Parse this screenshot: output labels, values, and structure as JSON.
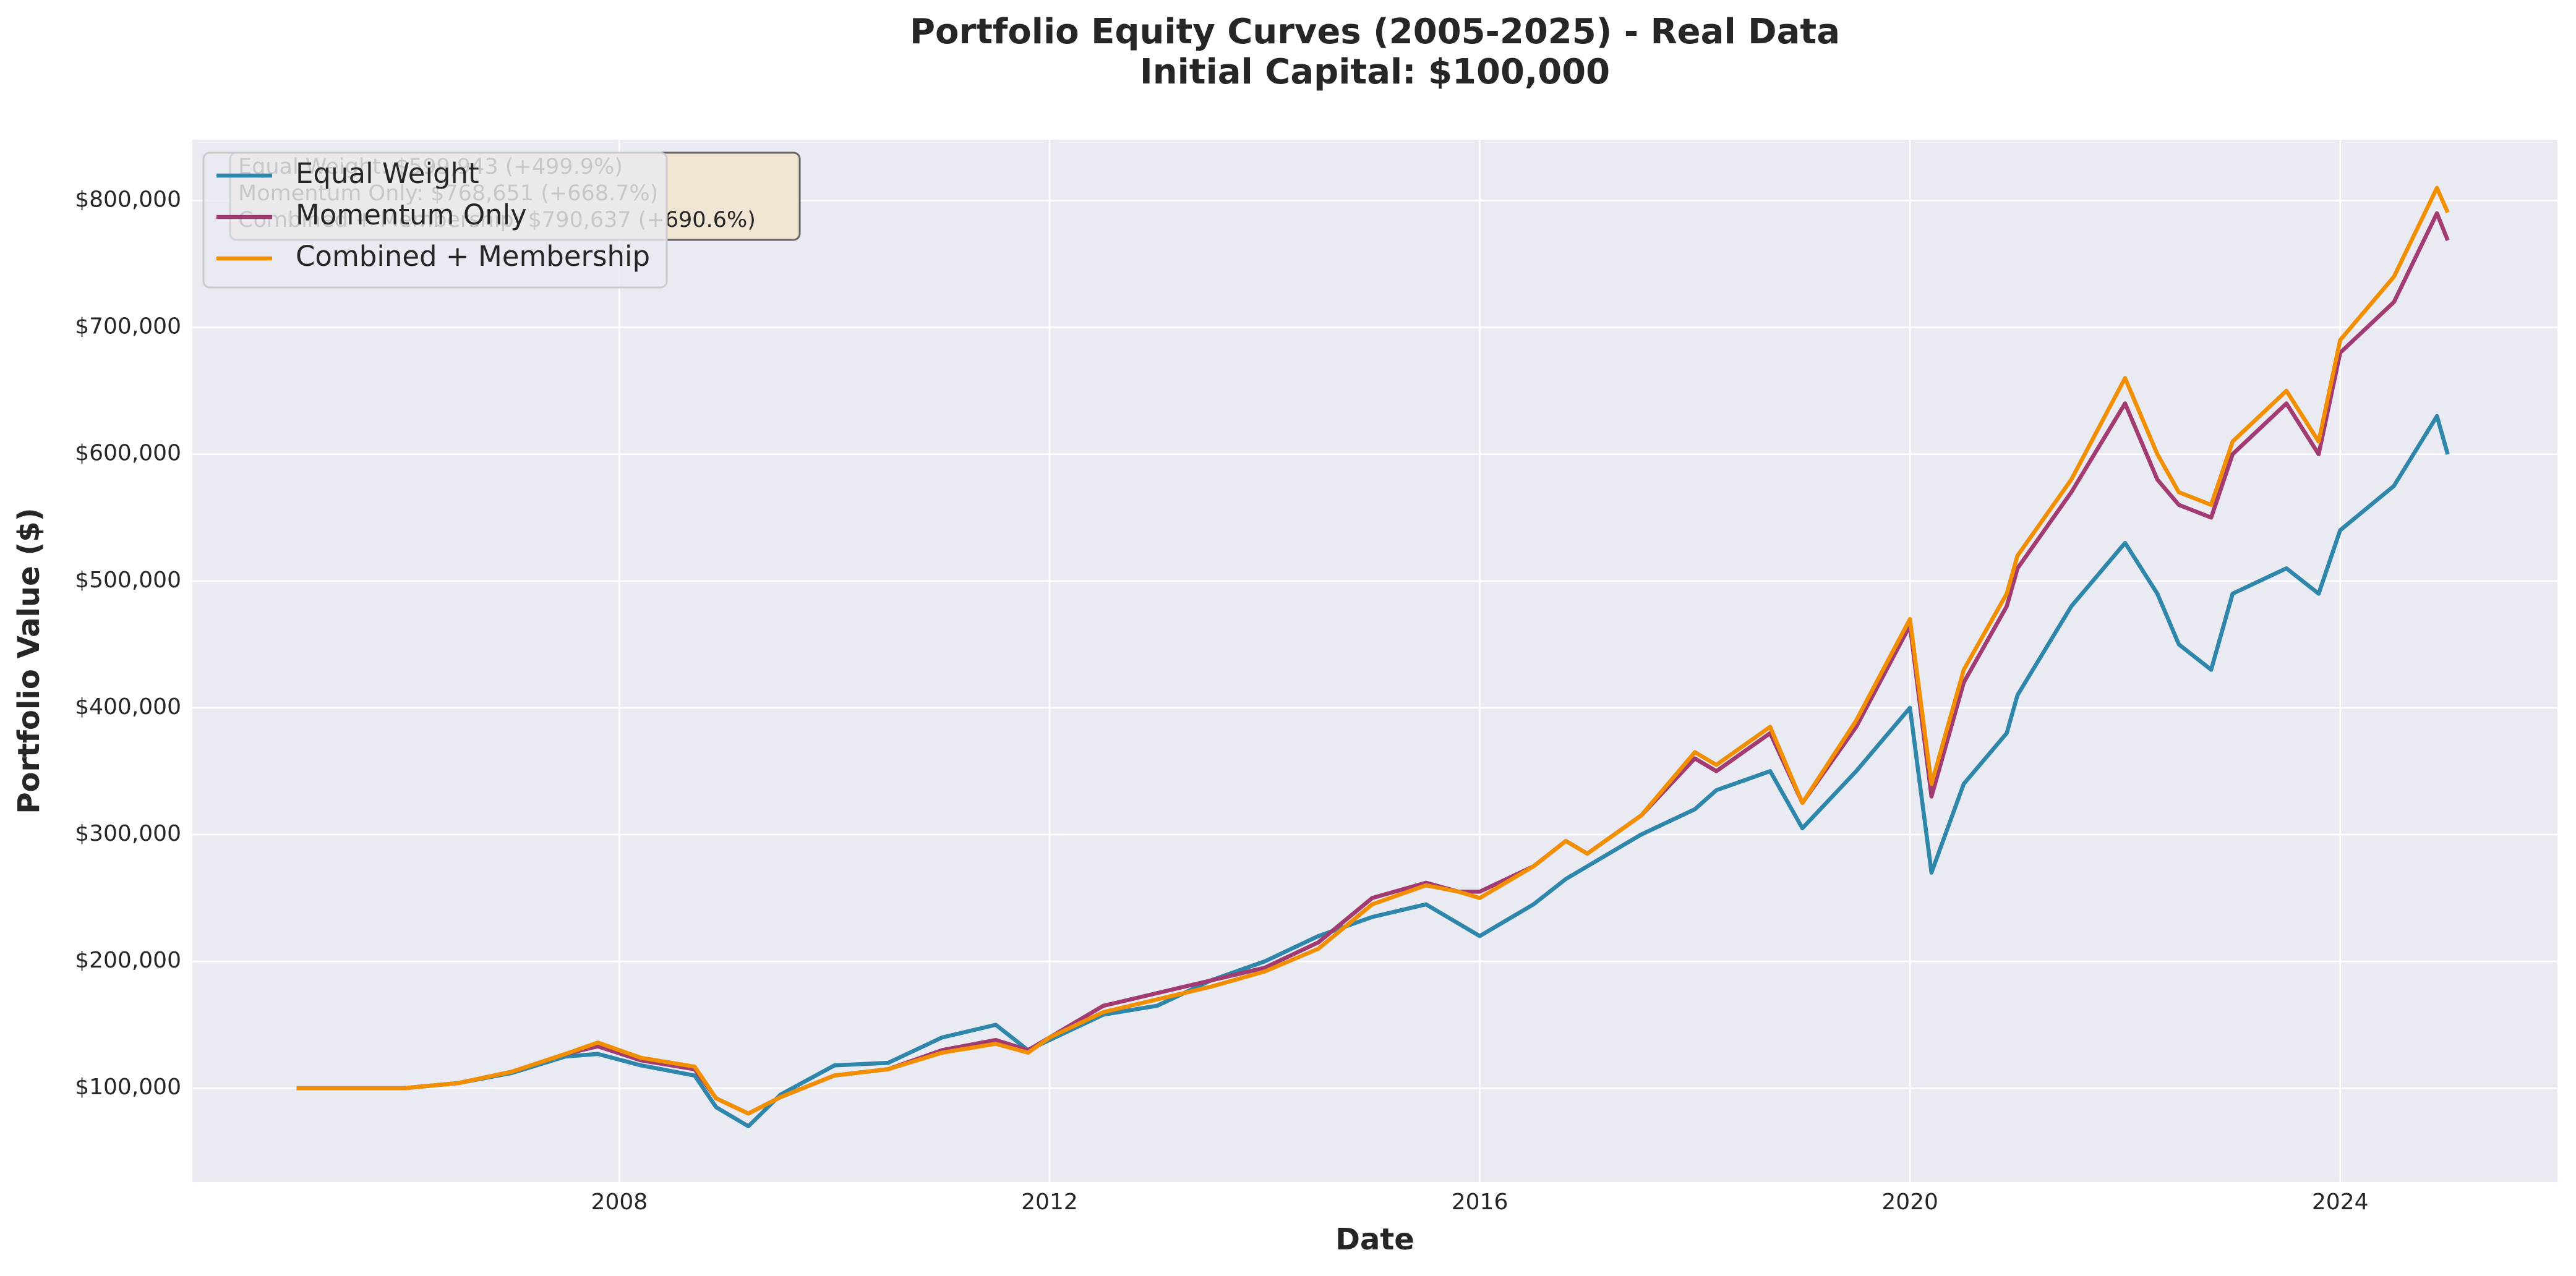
{
  "chart_data": {
    "type": "line",
    "title": "Portfolio Equity Curves (2005-2025) - Real Data",
    "subtitle": "Initial Capital: $100,000",
    "x_label": "Date",
    "y_label": "Portfolio Value ($)",
    "annotation": [
      "Equal Weight: $599,943 (+499.9%)",
      "Momentum Only: $768,651 (+668.7%)",
      "Combined + Membership: $790,637 (+690.6%)"
    ],
    "x": [
      2005.0,
      2006.0,
      2006.5,
      2007.0,
      2007.5,
      2007.8,
      2008.2,
      2008.7,
      2008.9,
      2009.2,
      2009.5,
      2010.0,
      2010.5,
      2011.0,
      2011.5,
      2011.8,
      2012.0,
      2012.5,
      2013.0,
      2013.5,
      2014.0,
      2014.5,
      2015.0,
      2015.5,
      2015.8,
      2016.0,
      2016.5,
      2016.8,
      2017.0,
      2017.5,
      2018.0,
      2018.2,
      2018.7,
      2019.0,
      2019.5,
      2020.0,
      2020.2,
      2020.5,
      2020.9,
      2021.0,
      2021.5,
      2022.0,
      2022.3,
      2022.5,
      2022.8,
      2023.0,
      2023.5,
      2023.8,
      2024.0,
      2024.5,
      2024.9,
      2025.0
    ],
    "series": [
      {
        "name": "Equal Weight",
        "color": "#2e86ab",
        "values": [
          100000,
          100000,
          104000,
          112000,
          125000,
          127000,
          118000,
          110000,
          85000,
          70000,
          95000,
          118000,
          120000,
          140000,
          150000,
          130000,
          138000,
          158000,
          165000,
          185000,
          200000,
          220000,
          235000,
          245000,
          230000,
          220000,
          245000,
          265000,
          275000,
          300000,
          320000,
          335000,
          350000,
          305000,
          350000,
          400000,
          270000,
          340000,
          380000,
          410000,
          480000,
          530000,
          490000,
          450000,
          430000,
          490000,
          510000,
          490000,
          540000,
          575000,
          630000,
          599943
        ]
      },
      {
        "name": "Momentum Only",
        "color": "#a23b72",
        "values": [
          100000,
          100000,
          104000,
          113000,
          127000,
          133000,
          122000,
          115000,
          92000,
          80000,
          93000,
          110000,
          115000,
          130000,
          138000,
          130000,
          140000,
          165000,
          175000,
          185000,
          195000,
          215000,
          250000,
          262000,
          255000,
          255000,
          275000,
          295000,
          285000,
          315000,
          360000,
          350000,
          380000,
          325000,
          385000,
          465000,
          330000,
          420000,
          480000,
          510000,
          570000,
          640000,
          580000,
          560000,
          550000,
          600000,
          640000,
          600000,
          680000,
          720000,
          790000,
          768651
        ]
      },
      {
        "name": "Combined + Membership",
        "color": "#f18f01",
        "values": [
          100000,
          100000,
          104000,
          113000,
          127000,
          136000,
          124000,
          117000,
          92000,
          80000,
          93000,
          110000,
          115000,
          128000,
          135000,
          128000,
          140000,
          160000,
          170000,
          180000,
          192000,
          210000,
          245000,
          260000,
          255000,
          250000,
          275000,
          295000,
          285000,
          315000,
          365000,
          355000,
          385000,
          325000,
          390000,
          470000,
          340000,
          430000,
          490000,
          520000,
          580000,
          660000,
          600000,
          570000,
          560000,
          610000,
          650000,
          610000,
          690000,
          740000,
          810000,
          790637
        ]
      }
    ],
    "xlim": [
      2004.03,
      2026.02
    ],
    "xticks": [
      2008,
      2012,
      2016,
      2020,
      2024
    ],
    "ylim": [
      26000,
      848000
    ],
    "yticks": [
      {
        "value": 100000,
        "label": "$100,000"
      },
      {
        "value": 200000,
        "label": "$200,000"
      },
      {
        "value": 300000,
        "label": "$300,000"
      },
      {
        "value": 400000,
        "label": "$400,000"
      },
      {
        "value": 500000,
        "label": "$500,000"
      },
      {
        "value": 600000,
        "label": "$600,000"
      },
      {
        "value": 700000,
        "label": "$700,000"
      },
      {
        "value": 800000,
        "label": "$800,000"
      }
    ],
    "grid": true,
    "legend": "upper-left"
  }
}
